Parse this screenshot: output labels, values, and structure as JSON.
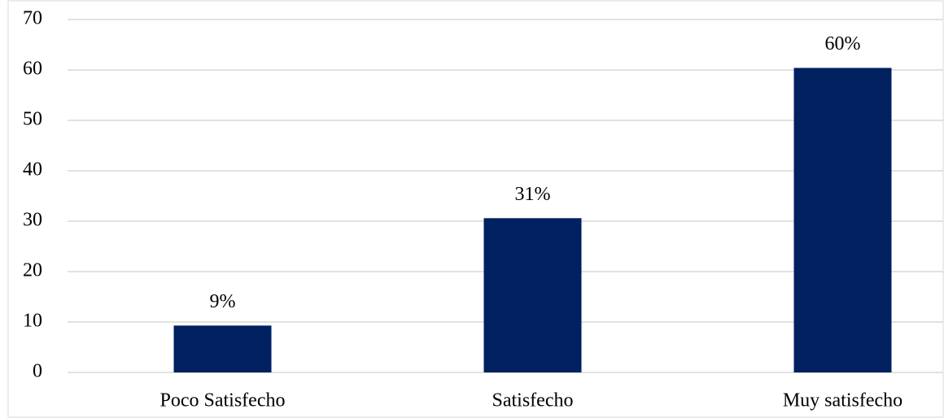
{
  "chart_data": {
    "type": "bar",
    "categories": [
      "Poco Satisfecho",
      "Satisfecho",
      "Muy satisfecho"
    ],
    "values": [
      9.3,
      30.6,
      60.4
    ],
    "value_labels": [
      "9%",
      "31%",
      "60%"
    ],
    "color": "#002060",
    "ylim": [
      0,
      70
    ],
    "yticks": [
      0,
      10,
      20,
      30,
      40,
      50,
      60,
      70
    ],
    "grid": true
  }
}
